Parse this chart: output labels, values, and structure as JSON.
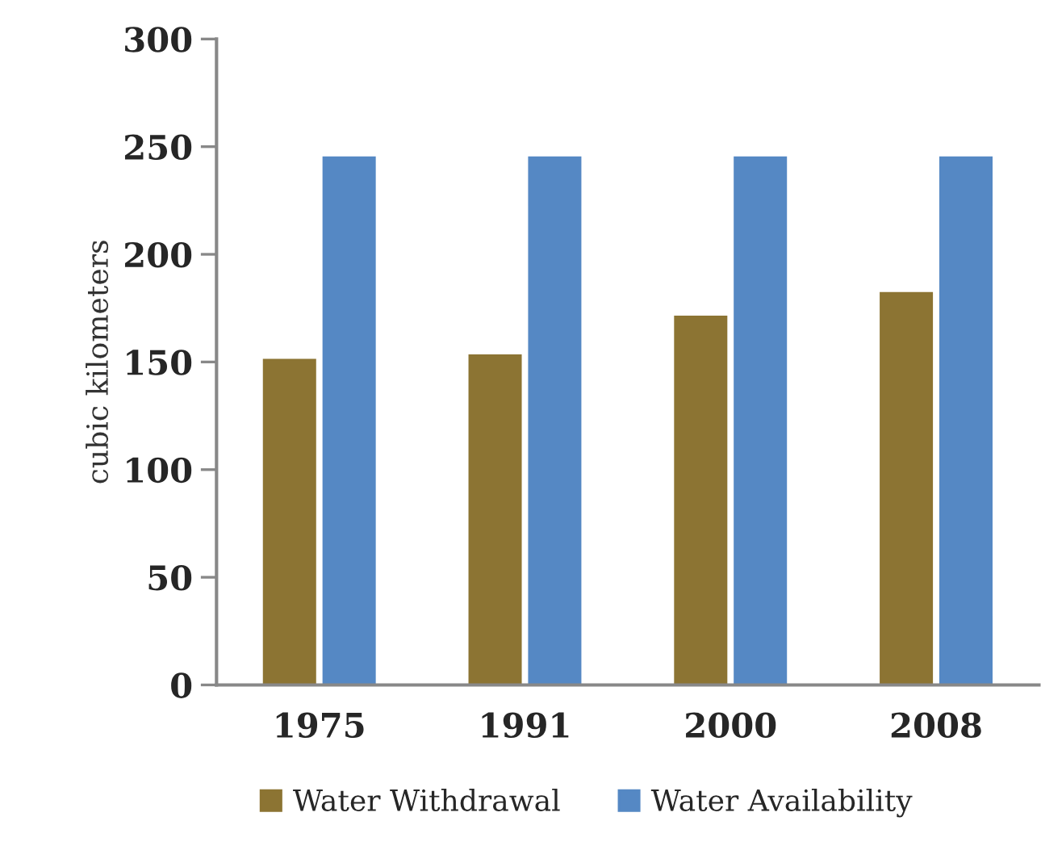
{
  "chart_data": {
    "type": "bar",
    "ylabel": "cubic kilometers",
    "categories": [
      "1975",
      "1991",
      "2000",
      "2008"
    ],
    "series": [
      {
        "name": "Water Withdrawal",
        "color": "#8c7433",
        "values": [
          152,
          154,
          172,
          183
        ]
      },
      {
        "name": "Water Availability",
        "color": "#5588c4",
        "values": [
          246,
          246,
          246,
          246
        ]
      }
    ],
    "ylim": [
      0,
      300
    ],
    "yticks": [
      0,
      50,
      100,
      150,
      200,
      250,
      300
    ],
    "grid": false,
    "legend": "bottom"
  }
}
